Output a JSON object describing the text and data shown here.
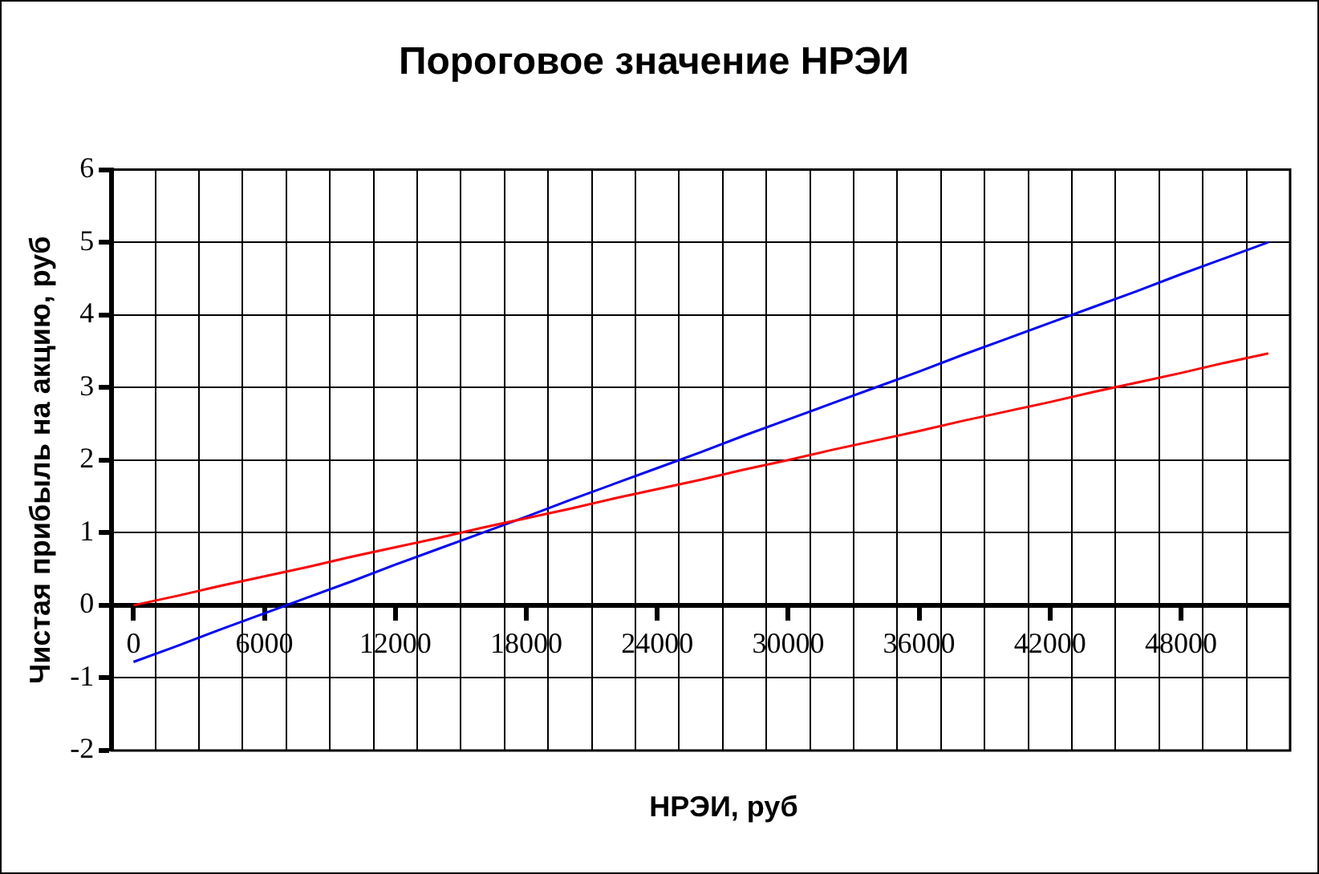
{
  "chart_data": {
    "type": "line",
    "title": "Пороговое значение НРЭИ",
    "xlabel": "НРЭИ, руб",
    "ylabel": "Чистая прибыль на акцию, руб",
    "x": [
      0,
      2000,
      4000,
      6000,
      8000,
      10000,
      12000,
      14000,
      16000,
      18000,
      20000,
      22000,
      24000,
      26000,
      28000,
      30000,
      32000,
      34000,
      36000,
      38000,
      40000,
      42000,
      44000,
      46000,
      48000,
      50000,
      52000
    ],
    "series": [
      {
        "color": "#ff0000",
        "values": [
          0,
          0.13,
          0.27,
          0.4,
          0.53,
          0.67,
          0.8,
          0.93,
          1.07,
          1.2,
          1.33,
          1.47,
          1.6,
          1.73,
          1.87,
          2.0,
          2.14,
          2.27,
          2.4,
          2.54,
          2.67,
          2.8,
          2.94,
          3.07,
          3.2,
          3.34,
          3.47
        ]
      },
      {
        "color": "#0000ff",
        "values": [
          -0.78,
          -0.56,
          -0.33,
          -0.11,
          0.11,
          0.33,
          0.56,
          0.78,
          1.0,
          1.22,
          1.45,
          1.67,
          1.89,
          2.11,
          2.34,
          2.56,
          2.78,
          3.0,
          3.22,
          3.45,
          3.67,
          3.89,
          4.11,
          4.33,
          4.56,
          4.78,
          5.0
        ]
      }
    ],
    "xlim": [
      -1000,
      53000
    ],
    "xticks": [
      {
        "value": -1000,
        "label": null
      },
      0,
      {
        "value": 1000,
        "label": null
      },
      {
        "value": 3000,
        "label": null
      },
      {
        "value": 5000,
        "label": null
      },
      6000,
      {
        "value": 7000,
        "label": null
      },
      {
        "value": 9000,
        "label": null
      },
      {
        "value": 11000,
        "label": null
      },
      12000,
      {
        "value": 13000,
        "label": null
      },
      {
        "value": 15000,
        "label": null
      },
      {
        "value": 17000,
        "label": null
      },
      18000,
      {
        "value": 19000,
        "label": null
      },
      {
        "value": 21000,
        "label": null
      },
      {
        "value": 23000,
        "label": null
      },
      24000,
      {
        "value": 25000,
        "label": null
      },
      {
        "value": 27000,
        "label": null
      },
      {
        "value": 29000,
        "label": null
      },
      30000,
      {
        "value": 31000,
        "label": null
      },
      {
        "value": 33000,
        "label": null
      },
      {
        "value": 35000,
        "label": null
      },
      36000,
      {
        "value": 37000,
        "label": null
      },
      {
        "value": 39000,
        "label": null
      },
      {
        "value": 41000,
        "label": null
      },
      42000,
      {
        "value": 43000,
        "label": null
      },
      {
        "value": 45000,
        "label": null
      },
      {
        "value": 47000,
        "label": null
      },
      48000,
      {
        "value": 49000,
        "label": null
      },
      {
        "value": 51000,
        "label": null
      },
      {
        "value": 53000,
        "label": null
      }
    ],
    "ylim": [
      -2,
      6
    ],
    "yticks": [
      -2,
      -1,
      0,
      1,
      2,
      3,
      4,
      5,
      6
    ],
    "grid": true,
    "legend": false,
    "marker": "none",
    "line_style": "solid"
  }
}
